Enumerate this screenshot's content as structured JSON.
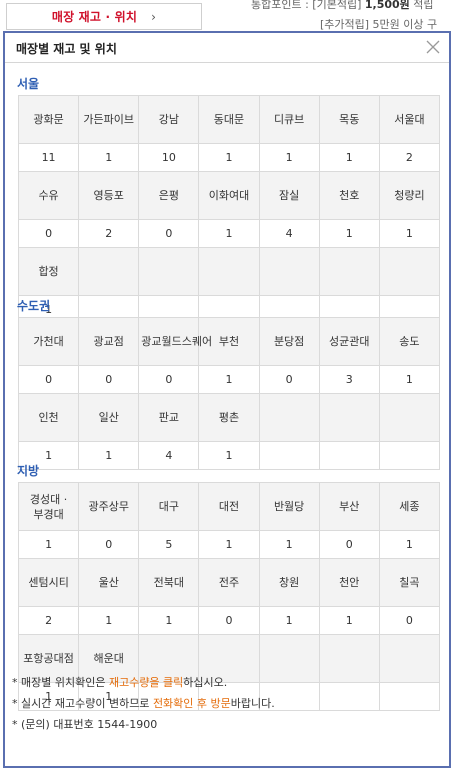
{
  "trigger": {
    "label": "매장 재고 · 위치",
    "chevron": "›"
  },
  "background": {
    "line1_prefix": "통합포인트 : [기본적립] ",
    "line1_amount": "1,500원",
    "line1_suffix": " 적립",
    "line2": "[추가적립] 5만원 이상 구"
  },
  "panel": {
    "title": "매장별 재고 및 위치",
    "close_icon": "close-icon"
  },
  "regions": [
    {
      "name": "서울",
      "rows": [
        {
          "names": [
            "광화문",
            "가든파이브",
            "강남",
            "동대문",
            "디큐브",
            "목동",
            "서울대"
          ],
          "qtys": [
            "11",
            "1",
            "10",
            "1",
            "1",
            "1",
            "2"
          ]
        },
        {
          "names": [
            "수유",
            "영등포",
            "은평",
            "이화여대",
            "잠실",
            "천호",
            "청량리"
          ],
          "qtys": [
            "0",
            "2",
            "0",
            "1",
            "4",
            "1",
            "1"
          ]
        },
        {
          "names": [
            "합정",
            "",
            "",
            "",
            "",
            "",
            ""
          ],
          "qtys": [
            "1",
            "",
            "",
            "",
            "",
            "",
            ""
          ]
        }
      ]
    },
    {
      "name": "수도권",
      "rows": [
        {
          "names": [
            "가천대",
            "광교점",
            "광교월드스퀘어",
            "부천",
            "분당점",
            "성균관대",
            "송도"
          ],
          "qtys": [
            "0",
            "0",
            "0",
            "1",
            "0",
            "3",
            "1"
          ]
        },
        {
          "names": [
            "인천",
            "일산",
            "판교",
            "평촌",
            "",
            "",
            ""
          ],
          "qtys": [
            "1",
            "1",
            "4",
            "1",
            "",
            "",
            ""
          ]
        }
      ]
    },
    {
      "name": "지방",
      "rows": [
        {
          "names": [
            "경성대 · 부경대",
            "광주상무",
            "대구",
            "대전",
            "반월당",
            "부산",
            "세종"
          ],
          "qtys": [
            "1",
            "0",
            "5",
            "1",
            "1",
            "0",
            "1"
          ]
        },
        {
          "names": [
            "센텀시티",
            "울산",
            "전북대",
            "전주",
            "창원",
            "천안",
            "칠곡"
          ],
          "qtys": [
            "2",
            "1",
            "1",
            "0",
            "1",
            "1",
            "0"
          ]
        },
        {
          "names": [
            "포항공대점",
            "해운대",
            "",
            "",
            "",
            "",
            ""
          ],
          "qtys": [
            "1",
            "1",
            "",
            "",
            "",
            "",
            ""
          ]
        }
      ]
    }
  ],
  "notes": {
    "n1_a": "* 매장별 위치확인은 ",
    "n1_hl": "재고수량을 클릭",
    "n1_b": "하십시오.",
    "n2_a": "* 실시간 재고수량이 변하므로 ",
    "n2_hl": "전화확인 후 방문",
    "n2_b": "바랍니다.",
    "n3": "* (문의) 대표번호 1544-1900"
  },
  "colors": {
    "accent_red": "#d0112b",
    "region_blue": "#2f5fb3",
    "panel_border": "#5a6fb0",
    "highlight_orange": "#e46c0a"
  }
}
